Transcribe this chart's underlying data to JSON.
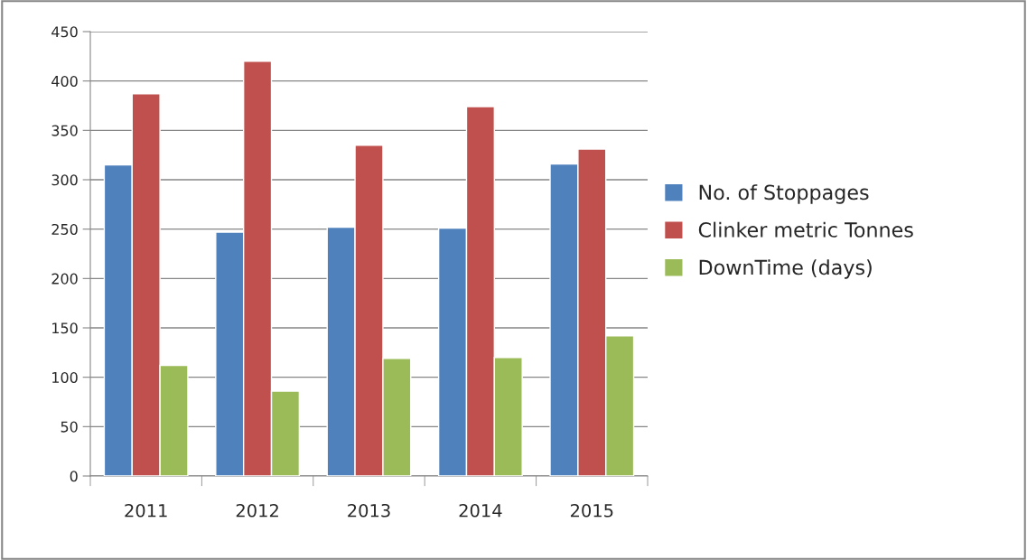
{
  "chart_data": {
    "type": "bar",
    "categories": [
      "2011",
      "2012",
      "2013",
      "2014",
      "2015"
    ],
    "series": [
      {
        "name": "No. of Stoppages",
        "color": "#4f81bd",
        "values": [
          315,
          247,
          252,
          251,
          316
        ]
      },
      {
        "name": "Clinker metric Tonnes",
        "color": "#c0504d",
        "values": [
          387,
          420,
          335,
          374,
          331
        ]
      },
      {
        "name": "DownTime (days)",
        "color": "#9bbb59",
        "values": [
          112,
          86,
          119,
          120,
          142
        ]
      }
    ],
    "ylim": [
      0,
      450
    ],
    "yticks": [
      0,
      50,
      100,
      150,
      200,
      250,
      300,
      350,
      400,
      450
    ],
    "grid": "y",
    "legend": "right"
  }
}
